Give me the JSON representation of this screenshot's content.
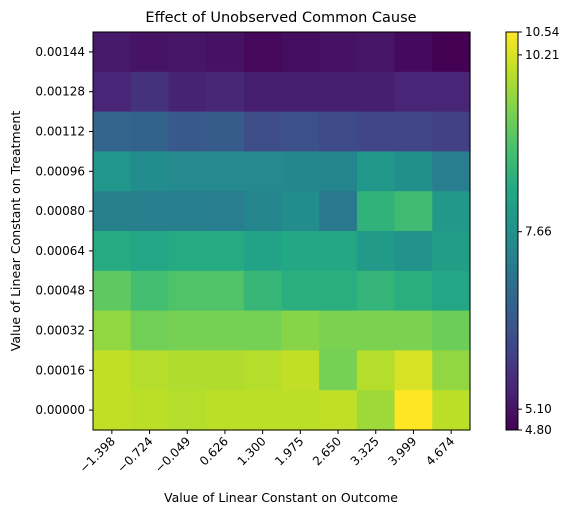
{
  "chart_data": {
    "type": "heatmap",
    "title": "Effect of Unobserved Common Cause",
    "xlabel": "Value of Linear Constant on Outcome",
    "ylabel": "Value of Linear Constant on Treatment",
    "x_ticks": [
      "−1.398",
      "−0.724",
      "−0.049",
      "0.626",
      "1.300",
      "1.975",
      "2.650",
      "3.325",
      "3.999",
      "4.674"
    ],
    "y_ticks": [
      "0.00144",
      "0.00128",
      "0.00112",
      "0.00096",
      "0.00080",
      "0.00064",
      "0.00048",
      "0.00032",
      "0.00016",
      "0.00000"
    ],
    "values": [
      [
        5.2,
        5.1,
        5.12,
        5.08,
        4.92,
        5.0,
        5.08,
        5.12,
        4.95,
        4.8
      ],
      [
        5.4,
        5.62,
        5.35,
        5.45,
        5.3,
        5.3,
        5.3,
        5.3,
        5.4,
        5.4
      ],
      [
        6.65,
        6.62,
        6.4,
        6.45,
        6.15,
        6.2,
        6.1,
        6.0,
        6.0,
        5.9
      ],
      [
        7.8,
        7.55,
        7.5,
        7.5,
        7.5,
        7.45,
        7.4,
        7.85,
        7.65,
        7.2
      ],
      [
        7.3,
        7.25,
        7.25,
        7.2,
        7.4,
        7.55,
        7.1,
        8.5,
        8.75,
        7.85
      ],
      [
        8.3,
        8.2,
        8.3,
        8.3,
        8.1,
        8.25,
        8.25,
        7.9,
        7.7,
        8.0
      ],
      [
        9.1,
        8.8,
        8.95,
        8.95,
        8.6,
        8.4,
        8.4,
        8.55,
        8.4,
        8.2
      ],
      [
        9.6,
        9.3,
        9.35,
        9.35,
        9.35,
        9.5,
        9.4,
        9.4,
        9.4,
        9.25
      ],
      [
        10.0,
        9.9,
        9.85,
        9.85,
        9.9,
        10.0,
        9.35,
        9.9,
        10.2,
        9.6
      ],
      [
        10.0,
        9.95,
        9.9,
        9.95,
        9.95,
        9.95,
        10.0,
        9.7,
        10.54,
        9.95
      ]
    ],
    "zlim": [
      4.8,
      10.54
    ],
    "colormap": "viridis",
    "colorbar_ticks": [
      "4.80",
      "5.10",
      "7.66",
      "10.21",
      "10.54"
    ],
    "colorbar_tick_values": [
      4.8,
      5.1,
      7.66,
      10.21,
      10.54
    ],
    "grid": false
  }
}
